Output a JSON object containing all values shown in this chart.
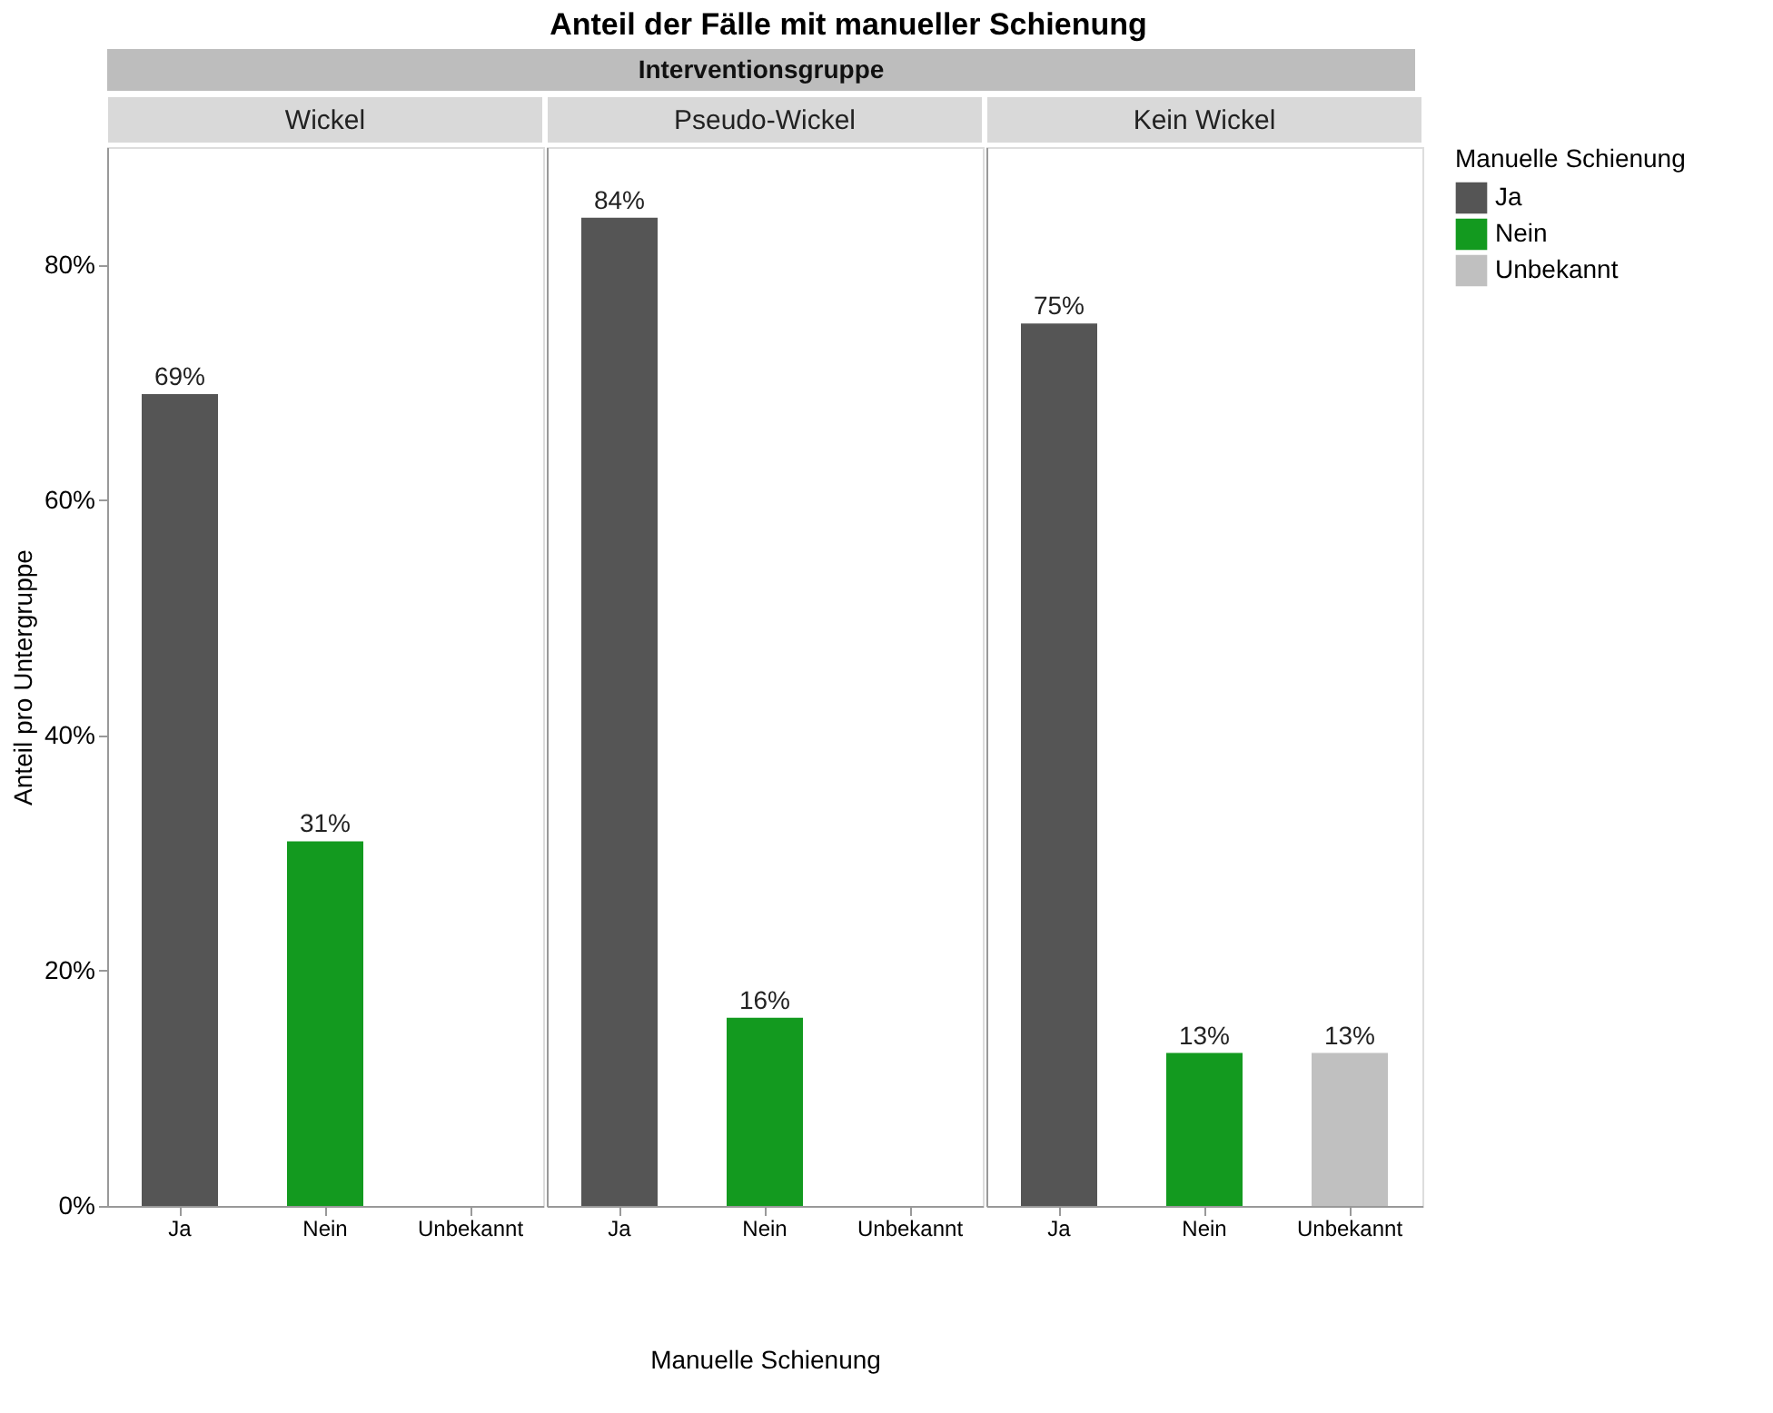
{
  "chart_data": [
    {
      "type": "bar",
      "title": "Wickel",
      "annotations": [
        "Anteil der Fälle mit manueller Schienung",
        "Interventionsgruppe"
      ],
      "ylabel": "Anteil pro Untergruppe",
      "categories": [
        "Ja",
        "Nein",
        "Unbekannt"
      ],
      "series": [
        {
          "color": "#555555",
          "values": [
            69,
            null,
            null
          ],
          "value_labels": [
            "69%",
            null,
            null
          ]
        },
        {
          "color": "#139a1f",
          "values": [
            null,
            31,
            null
          ],
          "value_labels": [
            null,
            "31%",
            null
          ]
        },
        {
          "color": "#c0c0c0",
          "values": [
            null,
            null,
            null
          ]
        }
      ],
      "ylim": [
        0,
        90
      ],
      "yticks": [
        {
          "value": 0,
          "label": "0%"
        },
        {
          "value": 20,
          "label": "20%"
        },
        {
          "value": 40,
          "label": "40%"
        },
        {
          "value": 60,
          "label": "60%"
        },
        {
          "value": 80,
          "label": "80%"
        }
      ],
      "grid": false
    },
    {
      "type": "bar",
      "title": "Pseudo-Wickel",
      "xlabel": "Manuelle Schienung",
      "categories": [
        "Ja",
        "Nein",
        "Unbekannt"
      ],
      "series": [
        {
          "color": "#555555",
          "values": [
            84,
            null,
            null
          ],
          "value_labels": [
            "84%",
            null,
            null
          ]
        },
        {
          "color": "#139a1f",
          "values": [
            null,
            16,
            null
          ],
          "value_labels": [
            null,
            "16%",
            null
          ]
        },
        {
          "color": "#c0c0c0",
          "values": [
            null,
            null,
            null
          ]
        }
      ],
      "ylim": [
        0,
        90
      ],
      "tick_labels": "x",
      "grid": false
    },
    {
      "type": "bar",
      "title": "Kein Wickel",
      "categories": [
        "Ja",
        "Nein",
        "Unbekannt"
      ],
      "series": [
        {
          "name": "Ja",
          "color": "#555555",
          "values": [
            75,
            null,
            null
          ],
          "value_labels": [
            "75%",
            null,
            null
          ]
        },
        {
          "name": "Nein",
          "color": "#139a1f",
          "values": [
            null,
            13,
            null
          ],
          "value_labels": [
            null,
            "13%",
            null
          ]
        },
        {
          "name": "Unbekannt",
          "color": "#c0c0c0",
          "values": [
            null,
            null,
            13
          ],
          "value_labels": [
            null,
            null,
            "13%"
          ]
        }
      ],
      "ylim": [
        0,
        90
      ],
      "tick_labels": "x",
      "grid": false,
      "legend": "right",
      "legend_title": "Manuelle Schienung"
    }
  ]
}
